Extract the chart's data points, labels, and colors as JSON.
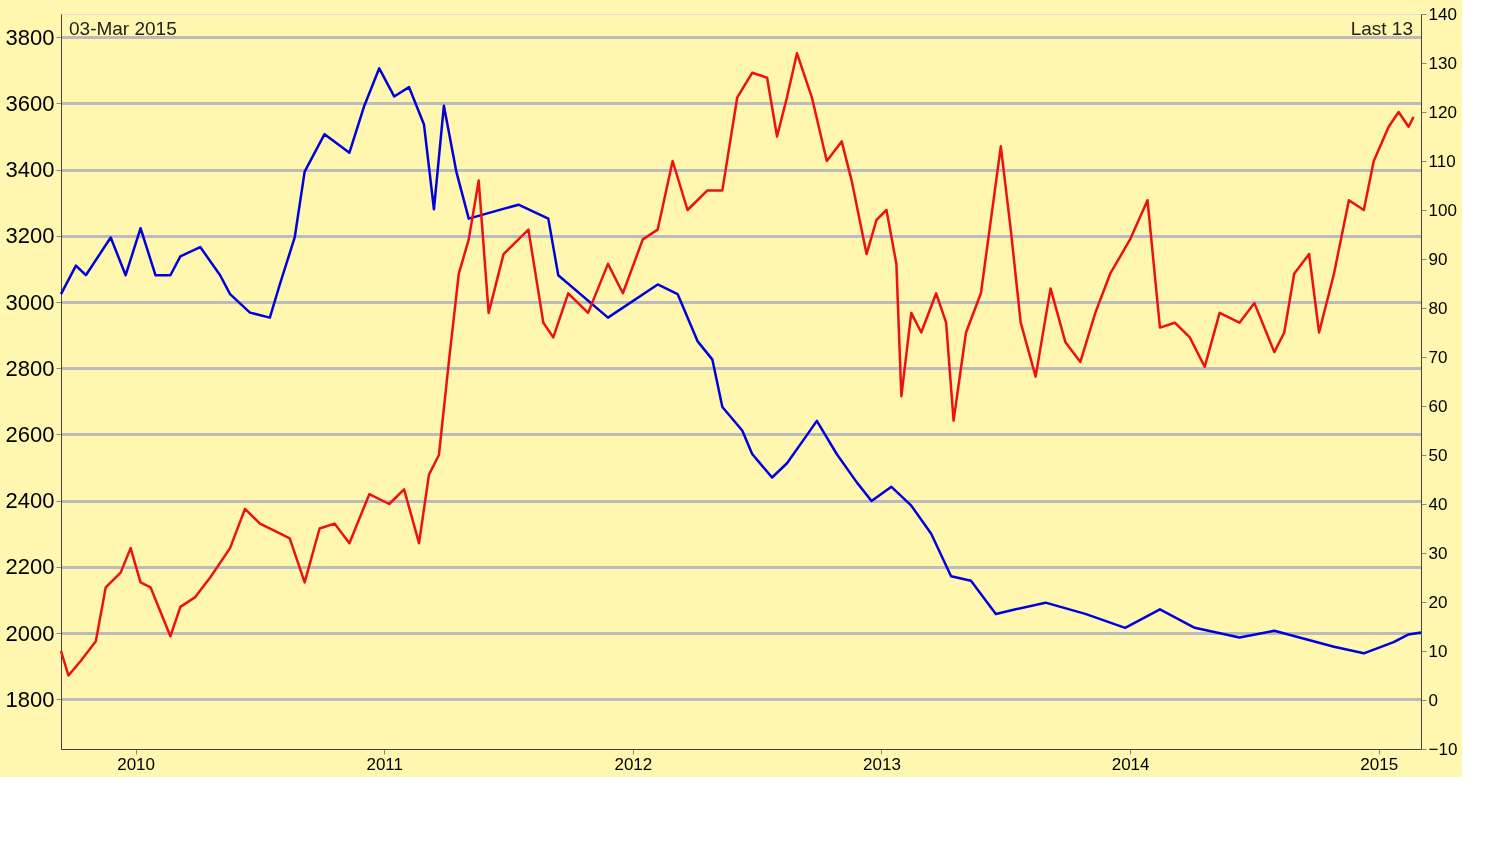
{
  "chart_data": {
    "type": "line",
    "annotations": [
      "03-Mar 2015",
      "Last 13"
    ],
    "xlim": [
      2009.7,
      2015.17
    ],
    "xticks": [
      2010,
      2011,
      2012,
      2013,
      2014,
      2015
    ],
    "ylim": [
      1650,
      3870
    ],
    "yticks": [
      1800,
      2000,
      2200,
      2400,
      2600,
      2800,
      3000,
      3200,
      3400,
      3600,
      3800
    ],
    "y2lim": [
      -10,
      140
    ],
    "y2ticks": [
      -10,
      0,
      10,
      20,
      30,
      40,
      50,
      60,
      70,
      80,
      90,
      100,
      110,
      120,
      130,
      140
    ],
    "grid": "y",
    "marker": "none",
    "line_style": "solid",
    "series": [
      {
        "color": "#0000dd",
        "x": [
          2009.7,
          2009.76,
          2009.8,
          2009.9,
          2009.96,
          2010.02,
          2010.08,
          2010.14,
          2010.18,
          2010.26,
          2010.34,
          2010.38,
          2010.46,
          2010.54,
          2010.58,
          2010.64,
          2010.68,
          2010.76,
          2010.86,
          2010.92,
          2010.98,
          2011.04,
          2011.1,
          2011.16,
          2011.2,
          2011.24,
          2011.29,
          2011.34,
          2011.54,
          2011.66,
          2011.7,
          2011.9,
          2012.1,
          2012.18,
          2012.26,
          2012.32,
          2012.36,
          2012.44,
          2012.48,
          2012.56,
          2012.62,
          2012.7,
          2012.74,
          2012.82,
          2012.9,
          2012.96,
          2013.04,
          2013.12,
          2013.2,
          2013.28,
          2013.36,
          2013.46,
          2013.54,
          2013.66,
          2013.82,
          2013.98,
          2014.12,
          2014.26,
          2014.44,
          2014.58,
          2014.82,
          2014.94,
          2015.06,
          2015.12,
          2015.17
        ],
        "values": [
          3024,
          3110,
          3081,
          3195,
          3081,
          3223,
          3081,
          3081,
          3138,
          3166,
          3081,
          3024,
          2968,
          2953,
          3053,
          3195,
          3394,
          3507,
          3451,
          3593,
          3706,
          3621,
          3649,
          3536,
          3280,
          3593,
          3394,
          3252,
          3294,
          3252,
          3081,
          2953,
          3053,
          3024,
          2882,
          2826,
          2683,
          2612,
          2541,
          2470,
          2513,
          2598,
          2641,
          2541,
          2456,
          2399,
          2442,
          2385,
          2300,
          2172,
          2158,
          2058,
          2072,
          2092,
          2058,
          2016,
          2072,
          2016,
          1987,
          2007,
          1959,
          1939,
          1973,
          1996,
          2002
        ]
      },
      {
        "color": "#ee1111",
        "axis": "y2",
        "x": [
          2009.7,
          2009.73,
          2009.78,
          2009.84,
          2009.88,
          2009.94,
          2009.98,
          2010.02,
          2010.06,
          2010.1,
          2010.14,
          2010.18,
          2010.24,
          2010.3,
          2010.38,
          2010.44,
          2010.5,
          2010.58,
          2010.62,
          2010.68,
          2010.74,
          2010.8,
          2010.86,
          2010.94,
          2011.02,
          2011.08,
          2011.14,
          2011.18,
          2011.22,
          2011.26,
          2011.3,
          2011.34,
          2011.38,
          2011.42,
          2011.48,
          2011.54,
          2011.58,
          2011.64,
          2011.68,
          2011.74,
          2011.82,
          2011.9,
          2011.96,
          2012.04,
          2012.1,
          2012.16,
          2012.22,
          2012.3,
          2012.36,
          2012.42,
          2012.48,
          2012.54,
          2012.58,
          2012.62,
          2012.66,
          2012.72,
          2012.78,
          2012.84,
          2012.88,
          2012.94,
          2012.98,
          2013.02,
          2013.06,
          2013.08,
          2013.12,
          2013.16,
          2013.22,
          2013.26,
          2013.29,
          2013.34,
          2013.4,
          2013.44,
          2013.48,
          2013.52,
          2013.56,
          2013.62,
          2013.68,
          2013.74,
          2013.8,
          2013.86,
          2013.92,
          2014.0,
          2014.07,
          2014.12,
          2014.18,
          2014.24,
          2014.3,
          2014.36,
          2014.44,
          2014.5,
          2014.58,
          2014.62,
          2014.66,
          2014.72,
          2014.76,
          2014.82,
          2014.88,
          2014.94,
          2014.98,
          2015.04,
          2015.08,
          2015.12,
          2015.14
        ],
        "values": [
          10,
          5,
          8,
          12,
          23,
          26,
          31,
          24,
          23,
          18,
          13,
          19,
          21,
          25,
          31,
          39,
          36,
          34,
          33,
          24,
          35,
          36,
          32,
          42,
          40,
          43,
          32,
          46,
          50,
          69,
          87,
          94,
          106,
          79,
          91,
          94,
          96,
          77,
          74,
          83,
          79,
          89,
          83,
          94,
          96,
          110,
          100,
          104,
          104,
          123,
          128,
          127,
          115,
          123,
          132,
          123,
          110,
          114,
          106,
          91,
          98,
          100,
          89,
          62,
          79,
          75,
          83,
          77,
          57,
          75,
          83,
          98,
          113,
          96,
          77,
          66,
          84,
          73,
          69,
          79,
          87,
          94,
          102,
          76,
          77,
          74,
          68,
          79,
          77,
          81,
          71,
          75,
          87,
          91,
          75,
          87,
          102,
          100,
          110,
          117,
          120,
          117,
          119
        ]
      }
    ]
  }
}
